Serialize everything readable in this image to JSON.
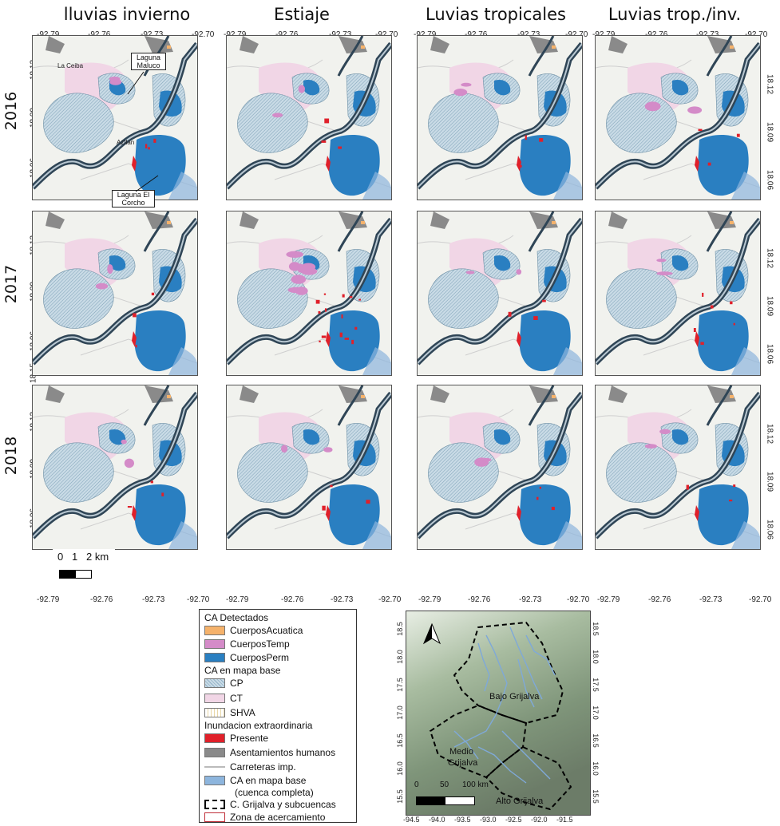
{
  "columns": [
    "lluvias invierno",
    "Estiaje",
    "Luvias tropicales",
    "Luvias trop./inv."
  ],
  "rows": [
    "2016",
    "2017",
    "2018"
  ],
  "lon_ticks": [
    "-92.79",
    "-92.76",
    "-92.73",
    "-92.70"
  ],
  "lat_ticks_left": [
    "18.12",
    "18.09",
    "18.06"
  ],
  "lat_ticks_right": [
    "18.12",
    "18.09",
    "18.06"
  ],
  "lat_tick_top_row3": "18.15",
  "places": {
    "la_ceiba": "La Ceiba",
    "laguna_maluco": "Laguna Maluco",
    "aztlan": "Aztlan",
    "laguna_el_corcho": "Laguna El Corcho"
  },
  "scalebar": {
    "t0": "0",
    "t1": "1",
    "t2": "2 km"
  },
  "legend": {
    "h1": "CA Detectados",
    "i1": "CuerposAcuatica",
    "i2": "CuerposTemp",
    "i3": "CuerposPerm",
    "h2": "CA en mapa base",
    "i4": "CP",
    "i5": "CT",
    "i6": "SHVA",
    "h3": "Inundacion extraordinaria",
    "i7": "Presente",
    "i8": "Asentamientos humanos",
    "i9": "Carreteras imp.",
    "i10": "CA en mapa base",
    "i10b": "(cuenca completa)",
    "i11": "C. Grijalva y subcuencas",
    "i12": "Zona de acercamiento"
  },
  "inset": {
    "lon_ticks": [
      "-94.5",
      "-94.0",
      "-93.5",
      "-93.0",
      "-92.5",
      "-92.0",
      "-91.5"
    ],
    "lat_ticks": [
      "18.5",
      "18.0",
      "17.5",
      "17.0",
      "16.5",
      "16.0",
      "15.5"
    ],
    "bajo": "Bajo Grijalva",
    "medio_1": "Medio",
    "medio_2": "Grijalva",
    "alto": "Alto Grijalva",
    "scale_t0": "0",
    "scale_t1": "50",
    "scale_t2": "100 km"
  },
  "colors": {
    "cuerpos_acuatica": "#f5b26b",
    "cuerpos_temp": "#d48bc8",
    "cuerpos_perm": "#2a7fc1",
    "cp": "#c9dbe6",
    "ct": "#f1d6e6",
    "presente": "#e0202a",
    "asentamientos": "#8a8a8a",
    "river": "#2f4556",
    "basemap_water": "#8db5dd"
  }
}
